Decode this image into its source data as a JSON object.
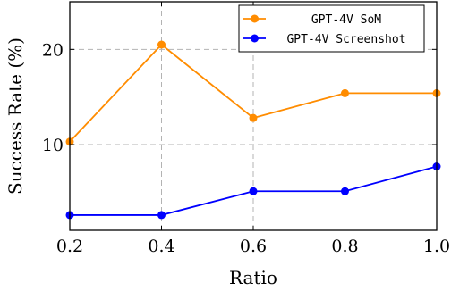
{
  "chart_data": {
    "type": "line",
    "title": "",
    "xlabel": "Ratio",
    "ylabel": "Success Rate (%)",
    "x": [
      0.2,
      0.4,
      0.6,
      0.8,
      1.0
    ],
    "xlim": [
      0.2,
      1.0
    ],
    "ylim": [
      1.0,
      25.0
    ],
    "x_tick_labels": [
      "0.2",
      "0.4",
      "0.6",
      "0.8",
      "1.0"
    ],
    "y_ticks": [
      10,
      20
    ],
    "y_tick_labels": [
      "10",
      "20"
    ],
    "grid": true,
    "legend_position": "top-right",
    "series": [
      {
        "name": "GPT-4V SoM",
        "color": "#ff8c00",
        "values": [
          10.3,
          20.5,
          12.8,
          15.4,
          15.4
        ]
      },
      {
        "name": "GPT-4V Screenshot",
        "color": "#0000ff",
        "values": [
          2.6,
          2.6,
          5.1,
          5.1,
          7.7
        ]
      }
    ]
  }
}
